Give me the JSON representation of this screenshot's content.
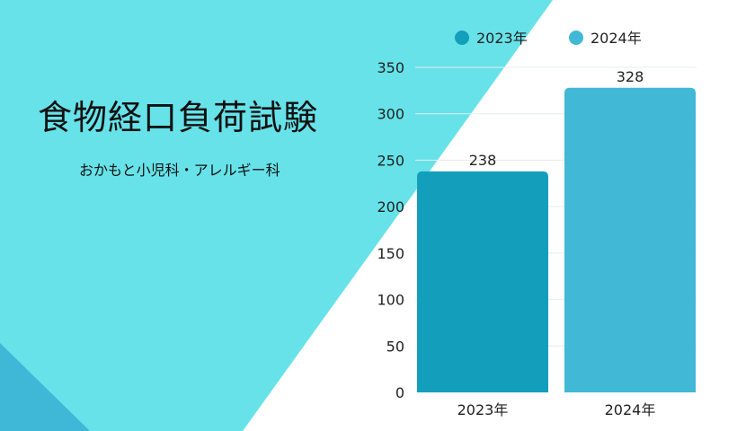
{
  "title": "食物経口負荷試験",
  "subtitle": "おかもと小児科・アレルギー科",
  "colors": {
    "cyan_background": "#67e2e9",
    "corner_triangle": "#3fb8d8",
    "series_2023": "#139fbc",
    "series_2024": "#41b8d6"
  },
  "chart_data": {
    "type": "bar",
    "categories": [
      "2023年",
      "2024年"
    ],
    "values": [
      238,
      328
    ],
    "series": [
      {
        "name": "2023年",
        "values": [
          238,
          null
        ]
      },
      {
        "name": "2024年",
        "values": [
          null,
          328
        ]
      }
    ],
    "data_labels": [
      "238",
      "328"
    ],
    "y_ticks": [
      "0",
      "50",
      "100",
      "150",
      "200",
      "250",
      "300",
      "350"
    ],
    "ylim": [
      0,
      350
    ],
    "legend_position": "top",
    "grid": true
  }
}
